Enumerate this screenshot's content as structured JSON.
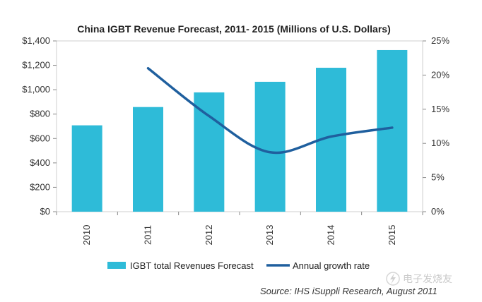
{
  "chart_data": {
    "type": "bar",
    "title": "China IGBT Revenue Forecast, 2011- 2015 (Millions of U.S. Dollars)",
    "categories": [
      "2010",
      "2011",
      "2012",
      "2013",
      "2014",
      "2015"
    ],
    "series": [
      {
        "name": "IGBT total Revenues Forecast",
        "type": "bar",
        "axis": "left",
        "color": "#2ebbd8",
        "values": [
          708,
          858,
          978,
          1065,
          1180,
          1325
        ]
      },
      {
        "name": "Annual growth rate",
        "type": "line",
        "axis": "right",
        "color": "#1f5f9e",
        "values": [
          null,
          21.0,
          14.0,
          8.7,
          11.0,
          12.3
        ]
      }
    ],
    "y_left": {
      "ylim": [
        0,
        1400
      ],
      "ticks": [
        0,
        200,
        400,
        600,
        800,
        1000,
        1200,
        1400
      ],
      "tick_labels": [
        "$0",
        "$200",
        "$400",
        "$600",
        "$800",
        "$1,000",
        "$1,200",
        "$1,400"
      ]
    },
    "y_right": {
      "ylim": [
        0,
        25
      ],
      "ticks": [
        0,
        5,
        10,
        15,
        20,
        25
      ],
      "tick_labels": [
        "0%",
        "5%",
        "10%",
        "15%",
        "20%",
        "25%"
      ]
    },
    "grid": false,
    "legend_position": "bottom",
    "source": "Source: IHS iSuppli Research, August 2011"
  },
  "watermark": {
    "text": "电子发烧友",
    "icon": "lightning-logo-icon"
  }
}
